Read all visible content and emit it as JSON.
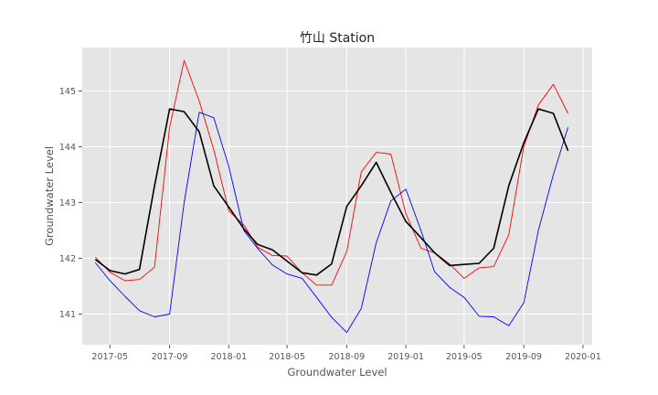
{
  "chart_data": {
    "type": "line",
    "title": "竹山 Station",
    "xlabel": "Groundwater Level",
    "ylabel": "Groundwater Level",
    "x_tick_labels": [
      "2017-05",
      "2017-09",
      "2018-01",
      "2018-05",
      "2018-09",
      "2019-01",
      "2019-05",
      "2019-09",
      "2020-01"
    ],
    "y_tick_labels": [
      "141",
      "142",
      "143",
      "144",
      "145"
    ],
    "xlim": [
      "2017-03-05",
      "2020-01-20"
    ],
    "ylim": [
      140.45,
      145.78
    ],
    "grid": true,
    "x": [
      "2017-04-01",
      "2017-05-01",
      "2017-06-01",
      "2017-07-01",
      "2017-08-01",
      "2017-09-01",
      "2017-10-01",
      "2017-11-01",
      "2017-12-01",
      "2018-01-01",
      "2018-02-01",
      "2018-03-01",
      "2018-04-01",
      "2018-05-01",
      "2018-06-01",
      "2018-07-01",
      "2018-08-01",
      "2018-09-01",
      "2018-10-01",
      "2018-11-01",
      "2018-12-01",
      "2019-01-01",
      "2019-02-01",
      "2019-03-01",
      "2019-04-01",
      "2019-05-01",
      "2019-06-01",
      "2019-07-01",
      "2019-08-01",
      "2019-09-01",
      "2019-10-01",
      "2019-11-01",
      "2019-12-01"
    ],
    "series": [
      {
        "color": "#ff0000",
        "width": 0.9,
        "values": [
          142.02,
          141.75,
          141.6,
          141.62,
          141.84,
          144.35,
          145.55,
          144.82,
          143.95,
          142.85,
          142.6,
          142.2,
          142.05,
          142.04,
          141.74,
          141.52,
          141.52,
          142.12,
          143.55,
          143.9,
          143.87,
          142.8,
          142.18,
          142.1,
          141.9,
          141.64,
          141.83,
          141.85,
          142.42,
          144.0,
          144.75,
          145.12,
          144.6
        ]
      },
      {
        "color": "#0000ff",
        "width": 0.9,
        "values": [
          141.92,
          141.6,
          141.32,
          141.06,
          140.95,
          141.0,
          143.0,
          144.62,
          144.52,
          143.65,
          142.5,
          142.18,
          141.88,
          141.72,
          141.64,
          141.3,
          140.94,
          140.67,
          141.1,
          142.28,
          143.03,
          143.24,
          142.5,
          141.76,
          141.48,
          141.3,
          140.96,
          140.95,
          140.79,
          141.2,
          142.5,
          143.5,
          144.35
        ]
      },
      {
        "color": "#000000",
        "width": 1.6,
        "values": [
          141.98,
          141.78,
          141.72,
          141.8,
          143.3,
          144.68,
          144.63,
          144.27,
          143.3,
          142.92,
          142.53,
          142.25,
          142.15,
          141.95,
          141.74,
          141.7,
          141.9,
          142.93,
          143.3,
          143.72,
          143.18,
          142.66,
          142.37,
          142.1,
          141.87,
          141.89,
          141.91,
          142.18,
          143.3,
          144.07,
          144.68,
          144.6,
          143.93
        ]
      }
    ]
  }
}
